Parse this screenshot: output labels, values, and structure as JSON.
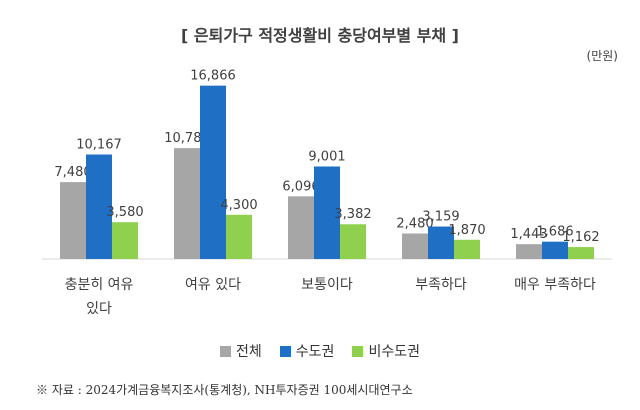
{
  "chart_data": {
    "type": "bar",
    "title": "[ 은퇴가구 적정생활비 충당여부별 부채 ]",
    "unit": "(만원)",
    "categories": [
      "충분히 여유 있다",
      "여유 있다",
      "보통이다",
      "부족하다",
      "매우 부족하다"
    ],
    "category_label_lines": [
      [
        "충분히 여유",
        "있다"
      ],
      [
        "여유 있다"
      ],
      [
        "보통이다"
      ],
      [
        "부족하다"
      ],
      [
        "매우 부족하다"
      ]
    ],
    "series": [
      {
        "name": "전체",
        "color": "#a6a6a6",
        "values": [
          7480,
          10786,
          6096,
          2480,
          1443
        ]
      },
      {
        "name": "수도권",
        "color": "#1f6fc5",
        "values": [
          10167,
          16866,
          9001,
          3159,
          1686
        ]
      },
      {
        "name": "비수도권",
        "color": "#8fd14f",
        "values": [
          3580,
          4300,
          3382,
          1870,
          1162
        ]
      }
    ],
    "data_labels": [
      [
        "7,480",
        "10,786",
        "6,096",
        "2,480",
        "1,443"
      ],
      [
        "10,167",
        "16,866",
        "9,001",
        "3,159",
        "1,686"
      ],
      [
        "3,580",
        "4,300",
        "3,382",
        "1,870",
        "1,162"
      ]
    ],
    "ylim": [
      0,
      18000
    ],
    "grid": false,
    "legend_position": "bottom",
    "source": "※ 자료 : 2024가계금융복지조사(통계청), NH투자증권 100세시대연구소"
  }
}
